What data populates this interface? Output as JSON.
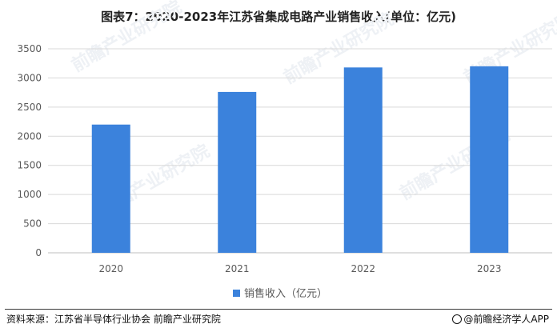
{
  "chart_data": {
    "type": "bar",
    "title": "图表7：2020-2023年江苏省集成电路产业销售收入(单位：亿元)",
    "categories": [
      "2020",
      "2021",
      "2022",
      "2023"
    ],
    "series": [
      {
        "name": "销售收入（亿元）",
        "values": [
          2200,
          2760,
          3180,
          3200
        ]
      }
    ],
    "ylim": [
      0,
      3500
    ],
    "yticks": [
      "0",
      "500",
      "1000",
      "1500",
      "2000",
      "2500",
      "3000",
      "3500"
    ],
    "grid": true,
    "legend_position": "bottom-center",
    "bar_color": "#3b82dc"
  },
  "watermark": "前瞻产业研究院",
  "footer": {
    "source": "资料来源：江苏省半导体行业协会 前瞻产业研究院",
    "credit": "@前瞻经济学人APP"
  }
}
